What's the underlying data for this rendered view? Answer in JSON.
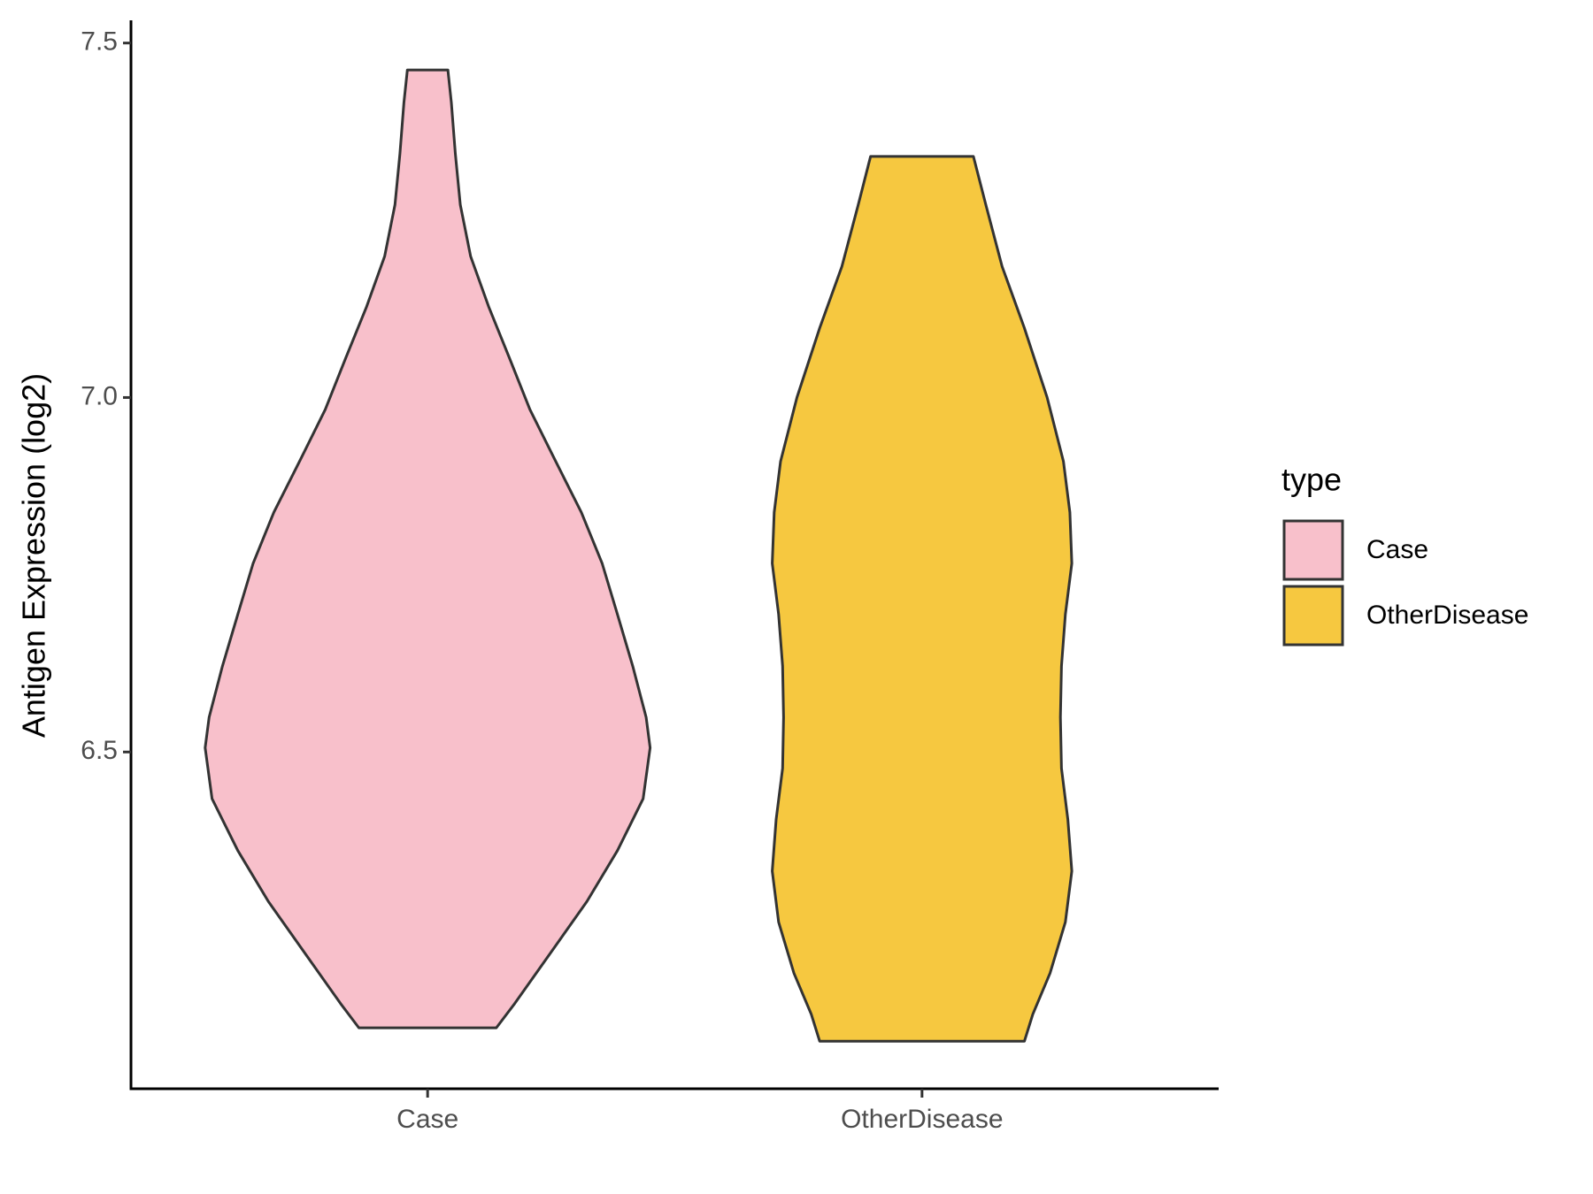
{
  "chart_data": {
    "type": "violin",
    "y_label": "Antigen Expression (log2)",
    "categories": [
      "Case",
      "OtherDisease"
    ],
    "series": [
      {
        "name": "Case",
        "color": "#f8c0cb",
        "y": [
          7.462,
          7.416,
          7.344,
          7.272,
          7.199,
          7.127,
          7.055,
          6.983,
          6.91,
          6.838,
          6.766,
          6.694,
          6.621,
          6.549,
          6.506,
          6.434,
          6.361,
          6.289,
          6.217,
          6.145,
          6.111
        ],
        "width": [
          0.041,
          0.048,
          0.056,
          0.066,
          0.087,
          0.124,
          0.166,
          0.207,
          0.259,
          0.311,
          0.353,
          0.384,
          0.415,
          0.442,
          0.45,
          0.436,
          0.384,
          0.322,
          0.249,
          0.176,
          0.139
        ]
      },
      {
        "name": "OtherDisease",
        "color": "#f6c840",
        "y": [
          7.34,
          7.272,
          7.185,
          7.098,
          7.0,
          6.91,
          6.838,
          6.766,
          6.694,
          6.621,
          6.549,
          6.477,
          6.405,
          6.332,
          6.26,
          6.188,
          6.13,
          6.092
        ],
        "width": [
          0.104,
          0.129,
          0.162,
          0.207,
          0.253,
          0.286,
          0.299,
          0.303,
          0.29,
          0.282,
          0.28,
          0.282,
          0.295,
          0.303,
          0.29,
          0.259,
          0.224,
          0.207
        ]
      }
    ],
    "legend_title": "type",
    "legend": "right",
    "xlim": [
      0.4,
      2.6
    ],
    "ylim": [
      6.025,
      7.532
    ],
    "yticks": [
      {
        "value": 6.5,
        "label": "6.5"
      },
      {
        "value": 7.0,
        "label": "7.0"
      },
      {
        "value": 7.5,
        "label": "7.5"
      }
    ]
  }
}
